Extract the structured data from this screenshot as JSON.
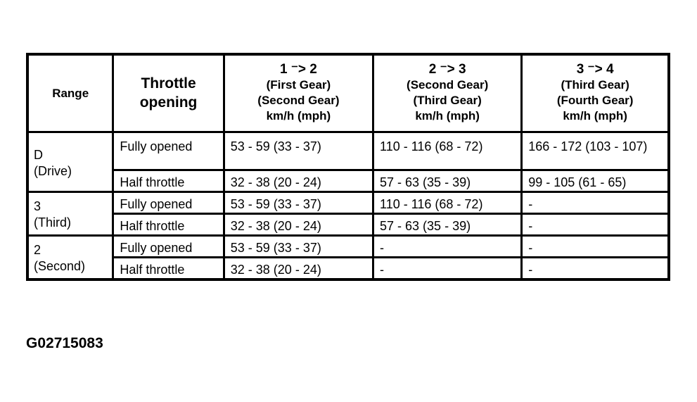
{
  "header": {
    "range": "Range",
    "throttle": [
      "Throttle",
      "opening"
    ],
    "shifts": [
      {
        "shift": "1 ⁻> 2",
        "from": "(First Gear)",
        "to": "(Second Gear)",
        "unit": "km/h (mph)"
      },
      {
        "shift": "2 ⁻> 3",
        "from": "(Second Gear)",
        "to": "(Third Gear)",
        "unit": "km/h (mph)"
      },
      {
        "shift": "3 ⁻> 4",
        "from": "(Third Gear)",
        "to": "(Fourth Gear)",
        "unit": "km/h (mph)"
      }
    ]
  },
  "groups": [
    {
      "range": [
        "D",
        "(Drive)"
      ],
      "rows": [
        {
          "throttle": "Fully opened",
          "values": [
            "53  - 59 (33  - 37)",
            "110 - 116 (68  - 72)",
            "166  - 172 (103  - 107)"
          ]
        },
        {
          "throttle": "Half throttle",
          "values": [
            "32  - 38 (20  - 24)",
            "57  - 63 (35 - 39)",
            "99  - 105 (61  - 65)"
          ]
        }
      ]
    },
    {
      "range": [
        "3",
        "(Third)"
      ],
      "rows": [
        {
          "throttle": "Fully opened",
          "values": [
            "53  - 59 (33  - 37)",
            "110 - 116 (68  - 72)",
            "-"
          ]
        },
        {
          "throttle": "Half throttle",
          "values": [
            "32  - 38 (20  - 24)",
            "57  - 63 (35 - 39)",
            "-"
          ]
        }
      ]
    },
    {
      "range": [
        "2",
        "(Second)"
      ],
      "rows": [
        {
          "throttle": "Fully opened",
          "values": [
            "53  - 59 (33  - 37)",
            "-",
            "-"
          ]
        },
        {
          "throttle": "Half throttle",
          "values": [
            "32  - 38 (20  - 24)",
            "-",
            "-"
          ]
        }
      ]
    }
  ],
  "figure_code": "G02715083"
}
